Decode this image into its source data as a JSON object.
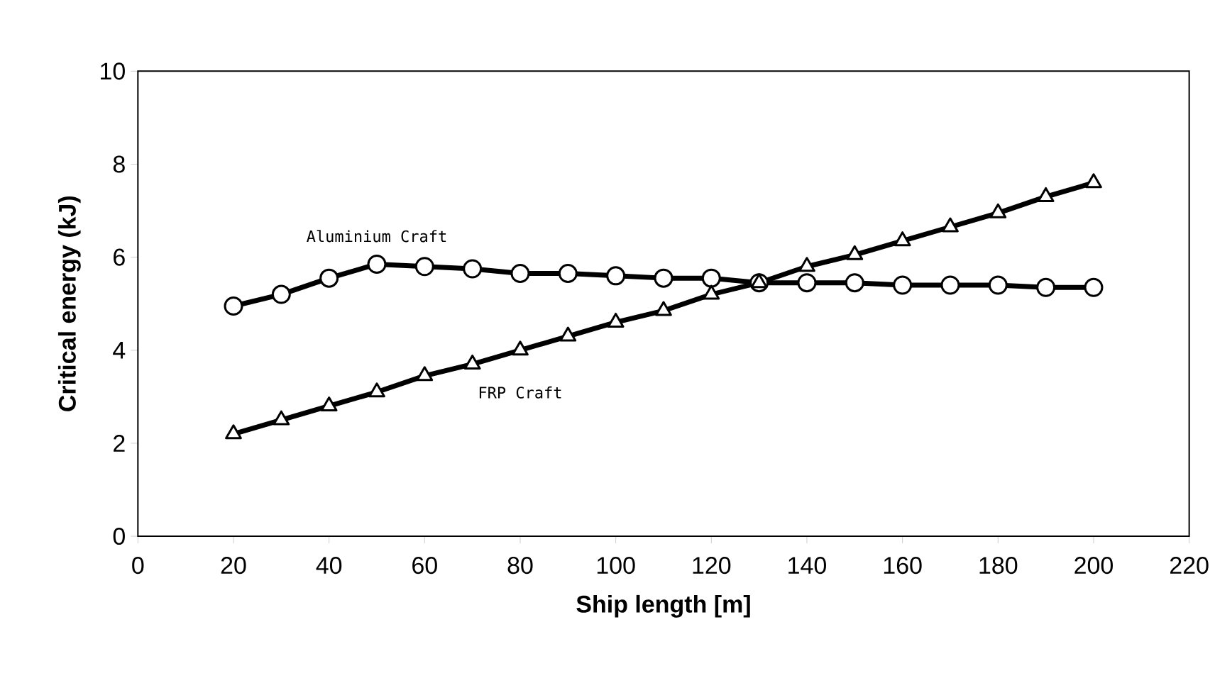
{
  "chart_data": {
    "type": "line",
    "xlabel": "Ship  length [m]",
    "ylabel": "Critical energy (kJ)",
    "x": [
      20,
      30,
      40,
      50,
      60,
      70,
      80,
      90,
      100,
      110,
      120,
      130,
      140,
      150,
      160,
      170,
      180,
      190,
      200
    ],
    "series": [
      {
        "name": "Aluminium Craft",
        "color": "#000000",
        "marker": "circle",
        "values": [
          4.95,
          5.2,
          5.55,
          5.85,
          5.8,
          5.75,
          5.65,
          5.65,
          5.6,
          5.55,
          5.55,
          5.45,
          5.45,
          5.45,
          5.4,
          5.4,
          5.4,
          5.35,
          5.35
        ]
      },
      {
        "name": "FRP Craft",
        "color": "#000000",
        "marker": "triangle",
        "values": [
          2.2,
          2.5,
          2.8,
          3.1,
          3.45,
          3.7,
          4.0,
          4.3,
          4.6,
          4.85,
          5.2,
          5.45,
          5.8,
          6.05,
          6.35,
          6.65,
          6.95,
          7.3,
          7.6
        ]
      }
    ],
    "xlim": [
      0,
      220
    ],
    "ylim": [
      0,
      10
    ],
    "xticks": [
      0,
      20,
      40,
      60,
      80,
      100,
      120,
      140,
      160,
      180,
      200,
      220
    ],
    "yticks": [
      0,
      2,
      4,
      6,
      8,
      10
    ],
    "grid": false,
    "line_style": "solid"
  }
}
